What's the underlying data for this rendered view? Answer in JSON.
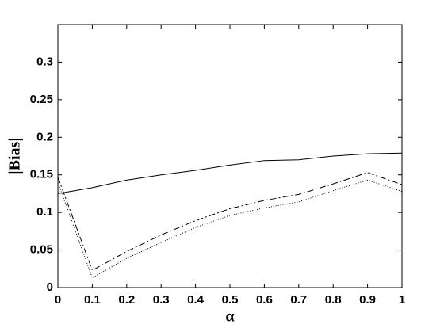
{
  "chart_data": {
    "type": "line",
    "x_label": "α",
    "y_label": "|Bias|",
    "x": [
      0,
      0.1,
      0.2,
      0.3,
      0.4,
      0.5,
      0.6,
      0.7,
      0.8,
      0.9,
      1
    ],
    "series": [
      {
        "color": "#000000",
        "dash": "solid",
        "values": [
          0.125,
          0.133,
          0.143,
          0.15,
          0.156,
          0.163,
          0.169,
          0.17,
          0.175,
          0.178,
          0.179
        ]
      },
      {
        "color": "#000000",
        "dash": "dashed",
        "values": [
          0.147,
          0.023,
          0.048,
          0.07,
          0.089,
          0.105,
          0.116,
          0.124,
          0.138,
          0.153,
          0.137
        ]
      },
      {
        "color": "#000000",
        "dash": "dotted",
        "values": [
          0.14,
          0.013,
          0.039,
          0.06,
          0.08,
          0.096,
          0.106,
          0.114,
          0.129,
          0.143,
          0.128
        ]
      }
    ],
    "xlim": [
      0,
      1
    ],
    "xticks": [
      0,
      0.1,
      0.2,
      0.3,
      0.4,
      0.5,
      0.6,
      0.7,
      0.8,
      0.9,
      1
    ],
    "ylim": [
      0,
      0.35
    ],
    "yticks": [
      0,
      0.05,
      0.1,
      0.15,
      0.2,
      0.25,
      0.3
    ],
    "grid": false
  }
}
